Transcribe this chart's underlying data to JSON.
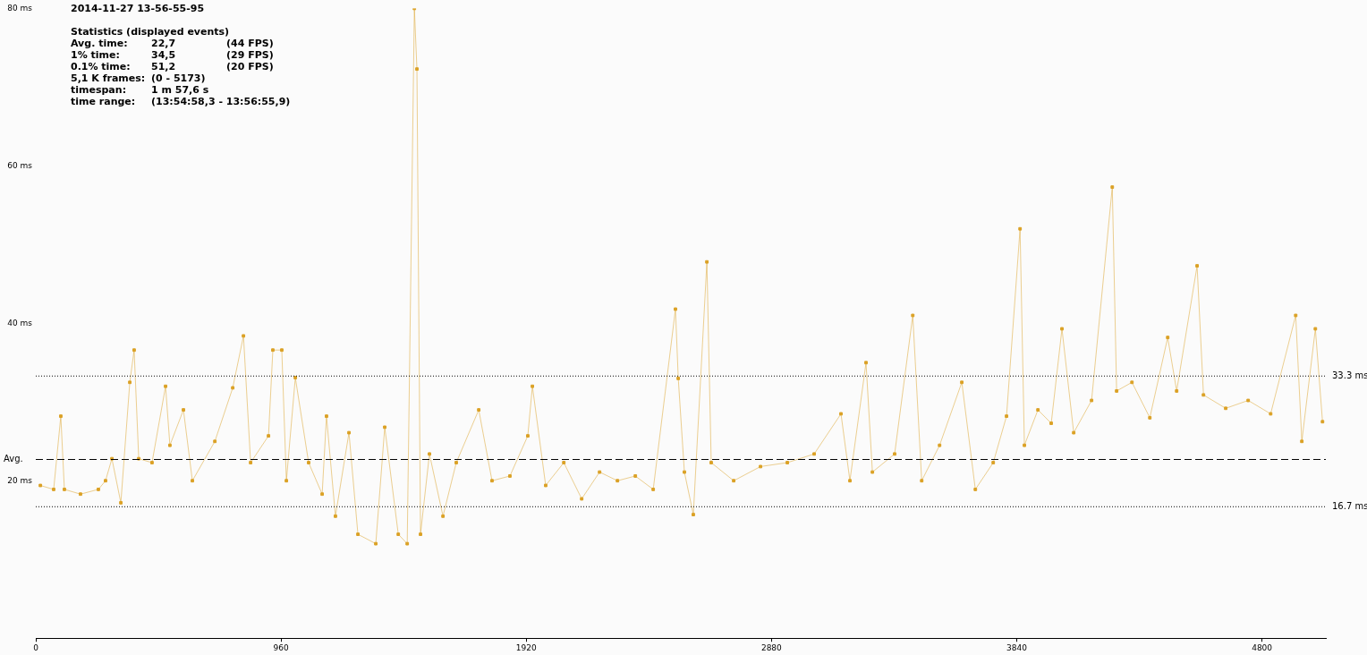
{
  "chart_data": {
    "type": "line",
    "title": "2014-11-27 13-56-55-95",
    "subtitle": "Statistics (displayed events)",
    "annotations": [
      "Avg. time:\t22,7\t(44 FPS)",
      "1% time:\t34,5\t(29 FPS)",
      "0.1% time:\t51,2\t(20 FPS)",
      "5,1 K frames:\t(0 - 5173)",
      "timespan:\t1 m 57,6 s",
      "time range:\t(13:54:58,3 - 13:56:55,9)"
    ],
    "x": [
      18,
      70,
      98,
      112,
      175,
      245,
      273,
      298,
      333,
      368,
      385,
      403,
      455,
      508,
      525,
      578,
      613,
      701,
      771,
      813,
      841,
      911,
      928,
      963,
      981,
      1016,
      1068,
      1121,
      1138,
      1173,
      1226,
      1261,
      1331,
      1366,
      1419,
      1454,
      1482,
      1492,
      1506,
      1541,
      1594,
      1646,
      1734,
      1786,
      1856,
      1926,
      1944,
      1996,
      2067,
      2137,
      2207,
      2277,
      2347,
      2417,
      2504,
      2515,
      2539,
      2574,
      2627,
      2644,
      2732,
      2837,
      2942,
      3047,
      3152,
      3187,
      3250,
      3275,
      3362,
      3433,
      3468,
      3538,
      3625,
      3678,
      3748,
      3800,
      3853,
      3870,
      3923,
      3975,
      4017,
      4063,
      4133,
      4214,
      4231,
      4291,
      4361,
      4431,
      4466,
      4546,
      4571,
      4658,
      4746,
      4834,
      4932,
      4956,
      5009,
      5037
    ],
    "series": [
      {
        "color": "#dba125",
        "values": [
          19.4,
          18.9,
          28.2,
          18.9,
          18.3,
          18.9,
          20.0,
          22.8,
          17.2,
          32.5,
          36.6,
          22.8,
          22.3,
          32.0,
          24.5,
          29.0,
          20.0,
          25.0,
          31.8,
          38.4,
          22.3,
          25.7,
          36.6,
          36.6,
          20.0,
          33.1,
          22.3,
          18.3,
          28.2,
          15.5,
          26.1,
          13.2,
          12.0,
          26.8,
          13.2,
          12.0,
          80.0,
          72.3,
          13.2,
          23.4,
          15.5,
          22.3,
          29.0,
          20.0,
          20.6,
          25.7,
          32.0,
          19.4,
          22.3,
          17.7,
          21.1,
          20.0,
          20.6,
          18.9,
          41.8,
          33.0,
          21.1,
          15.7,
          47.8,
          22.3,
          20.0,
          21.8,
          22.3,
          23.4,
          28.5,
          20.0,
          35.0,
          21.1,
          23.4,
          41.0,
          20.0,
          24.5,
          32.5,
          18.9,
          22.3,
          28.2,
          52.0,
          24.5,
          29.0,
          27.3,
          39.3,
          26.1,
          30.2,
          57.3,
          31.4,
          32.5,
          28.0,
          38.2,
          31.4,
          47.3,
          30.9,
          29.2,
          30.2,
          28.5,
          41.0,
          25.0,
          39.3,
          27.5
        ]
      }
    ],
    "xlim": [
      0,
      5050
    ],
    "xticks": [
      0,
      960,
      1920,
      2880,
      3840,
      4800
    ],
    "ylim": [
      0,
      80
    ],
    "yticks": [
      {
        "value": 20,
        "label": "20 ms"
      },
      {
        "value": 40,
        "label": "40 ms"
      },
      {
        "value": 60,
        "label": "60 ms"
      },
      {
        "value": 80,
        "label": "80 ms"
      }
    ],
    "ref_lines": [
      {
        "axis": "y",
        "value": 33.3,
        "label": "33.3 ms",
        "line_style": "dotted",
        "color": "#000000"
      },
      {
        "axis": "y",
        "value": 22.7,
        "label": "Avg.",
        "line_style": "dashed",
        "color": "#000000"
      },
      {
        "axis": "y",
        "value": 16.7,
        "label": "16.7 ms",
        "line_style": "dotted",
        "color": "#000000"
      }
    ],
    "marker": "square",
    "grid": false,
    "legend": false
  }
}
